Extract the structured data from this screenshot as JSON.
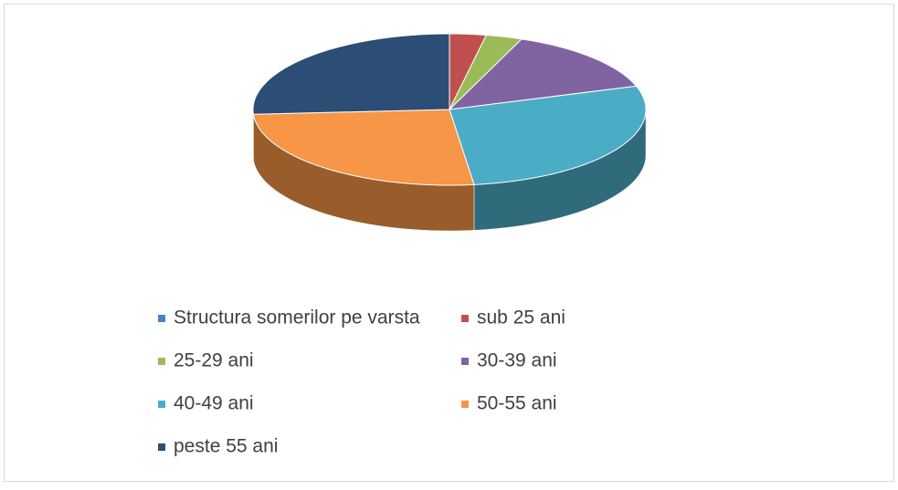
{
  "chart_data": {
    "type": "pie3d",
    "categories": [
      "Structura somerilor pe varsta",
      "sub 25 ani",
      "25-29 ani",
      "30-39 ani",
      "40-49 ani",
      "50-55 ani",
      "peste 55 ani"
    ],
    "values": [
      0,
      3,
      3,
      14,
      28,
      26,
      26
    ],
    "colors": [
      "#4f81bd",
      "#c0504d",
      "#9bbb59",
      "#8064a2",
      "#4bacc6",
      "#f79646",
      "#2c4d75"
    ]
  }
}
